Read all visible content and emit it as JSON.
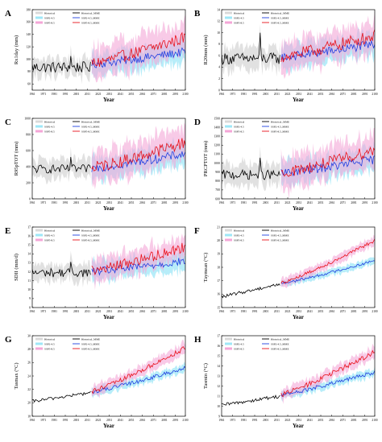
{
  "colors": {
    "historical_band": "#d9d9d9",
    "ssp245_band": "#9fe7f7",
    "ssp585_band": "#f4a6d7",
    "historical_line": "#000000",
    "ssp245_line": "#2040e0",
    "ssp585_line": "#e8101a"
  },
  "chart_data": [
    {
      "type": "line",
      "panel": "A",
      "ylabel": "Rx1day (mm)",
      "xlabel": "Year",
      "xlim": [
        1961,
        2100
      ],
      "ylim": [
        50,
        180
      ],
      "grid": false,
      "legend": "top-left",
      "xticks": [
        "1961",
        "1971",
        "1981",
        "1991",
        "2001",
        "2011",
        "2021",
        "2031",
        "2041",
        "2051",
        "2061",
        "2071",
        "2081",
        "2091",
        "2100"
      ],
      "yticks": [
        "60",
        "80",
        "100",
        "120",
        "140",
        "160",
        "180"
      ],
      "legend_labels": [
        "Historical",
        "Historical_MME",
        "SSP2-4.5",
        "SSP2-4.5_MME",
        "SSP5-8.5",
        "SSP5-8.5_MME"
      ],
      "hist": {
        "start": 1961,
        "end": 2014,
        "base": 87,
        "trend": 0.0,
        "noise": 9,
        "spikes": [
          [
            1996,
            105
          ],
          [
            1971,
            92
          ]
        ],
        "band": 14
      },
      "ssp245": {
        "start": 2015,
        "end": 2100,
        "base": 92,
        "end_value": 112,
        "noise": 7,
        "band": 18
      },
      "ssp585": {
        "start": 2015,
        "end": 2100,
        "base": 93,
        "end_value": 135,
        "noise": 10,
        "band": 24
      }
    },
    {
      "type": "line",
      "panel": "B",
      "ylabel": "R20mm (mm)",
      "xlabel": "Year",
      "xlim": [
        1961,
        2100
      ],
      "ylim": [
        0,
        14
      ],
      "grid": false,
      "legend": "top-left",
      "xticks": [
        "1961",
        "1971",
        "1981",
        "1991",
        "2001",
        "2011",
        "2021",
        "2031",
        "2041",
        "2051",
        "2061",
        "2071",
        "2081",
        "2091",
        "2100"
      ],
      "yticks": [
        "0",
        "2",
        "4",
        "6",
        "8",
        "10",
        "12",
        "14"
      ],
      "legend_labels": [
        "Historical",
        "Historical_MME",
        "SSP2-4.5",
        "SSP2-4.5_MME",
        "SSP5-8.5",
        "SSP5-8.5_MME"
      ],
      "hist": {
        "start": 1961,
        "end": 2014,
        "base": 5.5,
        "trend": 0.0,
        "noise": 1.0,
        "spikes": [
          [
            1996,
            10.0
          ]
        ],
        "band": 1.8
      },
      "ssp245": {
        "start": 2015,
        "end": 2100,
        "base": 5.7,
        "end_value": 8.0,
        "noise": 0.8,
        "band": 2.0
      },
      "ssp585": {
        "start": 2015,
        "end": 2100,
        "base": 5.8,
        "end_value": 9.5,
        "noise": 1.1,
        "band": 2.6
      }
    },
    {
      "type": "line",
      "panel": "C",
      "ylabel": "R95pTOT (mm)",
      "xlabel": "Year",
      "xlim": [
        1961,
        2100
      ],
      "ylim": [
        0,
        1000
      ],
      "grid": false,
      "legend": "top-left",
      "xticks": [
        "1961",
        "1971",
        "1981",
        "1991",
        "2001",
        "2011",
        "2021",
        "2031",
        "2041",
        "2051",
        "2061",
        "2071",
        "2081",
        "2091",
        "2100"
      ],
      "yticks": [
        "0",
        "200",
        "400",
        "600",
        "800",
        "1000"
      ],
      "legend_labels": [
        "Historical",
        "Historical_MME",
        "SSP2-4.5",
        "SSP2-4.5_MME",
        "SSP5-8.5",
        "SSP5-8.5_MME"
      ],
      "hist": {
        "start": 1961,
        "end": 2014,
        "base": 370,
        "trend": 0.0,
        "noise": 55,
        "spikes": [
          [
            1996,
            520
          ]
        ],
        "band": 110
      },
      "ssp245": {
        "start": 2015,
        "end": 2100,
        "base": 380,
        "end_value": 560,
        "noise": 55,
        "band": 140
      },
      "ssp585": {
        "start": 2015,
        "end": 2100,
        "base": 385,
        "end_value": 700,
        "noise": 75,
        "band": 190
      }
    },
    {
      "type": "line",
      "panel": "D",
      "ylabel": "PRCPTOT (mm)",
      "xlabel": "Year",
      "xlim": [
        1961,
        2100
      ],
      "ylim": [
        600,
        1500
      ],
      "grid": false,
      "legend": "top-left",
      "xticks": [
        "1961",
        "1971",
        "1981",
        "1991",
        "2001",
        "2011",
        "2021",
        "2031",
        "2041",
        "2051",
        "2061",
        "2071",
        "2081",
        "2091",
        "2100"
      ],
      "yticks": [
        "600",
        "700",
        "800",
        "900",
        "1000",
        "1100",
        "1200",
        "1300",
        "1400",
        "1500"
      ],
      "legend_labels": [
        "Historical",
        "Historical_MME",
        "SSP2-4.5",
        "SSP2-4.5_MME",
        "SSP5-8.5",
        "SSP5-8.5_MME"
      ],
      "hist": {
        "start": 1961,
        "end": 2014,
        "base": 870,
        "trend": 0.0,
        "noise": 55,
        "spikes": [
          [
            1996,
            1060
          ]
        ],
        "band": 110
      },
      "ssp245": {
        "start": 2015,
        "end": 2100,
        "base": 885,
        "end_value": 1040,
        "noise": 50,
        "band": 130
      },
      "ssp585": {
        "start": 2015,
        "end": 2100,
        "base": 890,
        "end_value": 1150,
        "noise": 65,
        "band": 180
      }
    },
    {
      "type": "line",
      "panel": "E",
      "ylabel": "SDII (mm/d)",
      "xlabel": "Year",
      "xlim": [
        1961,
        2100
      ],
      "ylim": [
        8,
        17
      ],
      "grid": false,
      "legend": "top-left",
      "xticks": [
        "1961",
        "1971",
        "1981",
        "1991",
        "2001",
        "2011",
        "2021",
        "2031",
        "2041",
        "2051",
        "2061",
        "2071",
        "2081",
        "2091",
        "2100"
      ],
      "yticks": [
        "8",
        "9",
        "10",
        "11",
        "12",
        "13",
        "14",
        "15",
        "16",
        "17"
      ],
      "legend_labels": [
        "Historical",
        "Historical_MME",
        "SSP2-4.5",
        "SSP2-4.5_MME",
        "SSP5-8.5",
        "SSP5-8.5_MME"
      ],
      "hist": {
        "start": 1961,
        "end": 2014,
        "base": 11.9,
        "trend": 0.0,
        "noise": 0.5,
        "spikes": [
          [
            1996,
            13.1
          ]
        ],
        "band": 0.9
      },
      "ssp245": {
        "start": 2015,
        "end": 2100,
        "base": 12.0,
        "end_value": 13.2,
        "noise": 0.45,
        "band": 1.0
      },
      "ssp585": {
        "start": 2015,
        "end": 2100,
        "base": 12.1,
        "end_value": 14.8,
        "noise": 0.6,
        "band": 1.3
      }
    },
    {
      "type": "line",
      "panel": "F",
      "ylabel": "Taymean (°C)",
      "xlabel": "Year",
      "xlim": [
        1961,
        2100
      ],
      "ylim": [
        15,
        21
      ],
      "grid": false,
      "legend": "top-left",
      "xticks": [
        "1961",
        "1971",
        "1981",
        "1991",
        "2001",
        "2011",
        "2021",
        "2031",
        "2041",
        "2051",
        "2061",
        "2071",
        "2081",
        "2091",
        "2100"
      ],
      "yticks": [
        "15",
        "16",
        "17",
        "18",
        "19",
        "20",
        "21"
      ],
      "legend_labels": [
        "Historical",
        "Historical_MME",
        "SSP2-4.5",
        "SSP2-4.5_MME",
        "SSP5-8.5",
        "SSP5-8.5_MME"
      ],
      "hist": {
        "start": 1961,
        "end": 2014,
        "base": 15.8,
        "trend": 0.018,
        "noise": 0.12,
        "spikes": [],
        "band": 0.0
      },
      "ssp245": {
        "start": 2015,
        "end": 2100,
        "base": 16.8,
        "end_value": 18.5,
        "noise": 0.1,
        "band": 0.25
      },
      "ssp585": {
        "start": 2015,
        "end": 2100,
        "base": 16.85,
        "end_value": 20.0,
        "noise": 0.12,
        "band": 0.35
      }
    },
    {
      "type": "line",
      "panel": "G",
      "ylabel": "Tasmax (°C)",
      "xlabel": "Year",
      "xlim": [
        1961,
        2100
      ],
      "ylim": [
        18,
        30
      ],
      "grid": false,
      "legend": "top-left",
      "xticks": [
        "1961",
        "1971",
        "1981",
        "1991",
        "2001",
        "2011",
        "2021",
        "2031",
        "2041",
        "2051",
        "2061",
        "2071",
        "2081",
        "2091",
        "2100"
      ],
      "yticks": [
        "18",
        "20",
        "22",
        "24",
        "26",
        "28",
        "30"
      ],
      "legend_labels": [
        "Historical",
        "Historical_MME",
        "SSP2-4.5",
        "SSP2-4.5_MME",
        "SSP5-8.5",
        "SSP5-8.5_MME"
      ],
      "hist": {
        "start": 1961,
        "end": 2014,
        "base": 20.2,
        "trend": 0.025,
        "noise": 0.25,
        "spikes": [],
        "band": 0.0
      },
      "ssp245": {
        "start": 2015,
        "end": 2100,
        "base": 21.6,
        "end_value": 25.2,
        "noise": 0.3,
        "band": 0.6
      },
      "ssp585": {
        "start": 2015,
        "end": 2100,
        "base": 21.7,
        "end_value": 28.2,
        "noise": 0.35,
        "band": 0.8
      }
    },
    {
      "type": "line",
      "panel": "H",
      "ylabel": "Tasmin (°C)",
      "xlabel": "Year",
      "xlim": [
        1961,
        2100
      ],
      "ylim": [
        9,
        17
      ],
      "grid": false,
      "legend": "top-left",
      "xticks": [
        "1961",
        "1971",
        "1981",
        "1991",
        "2001",
        "2011",
        "2021",
        "2031",
        "2041",
        "2051",
        "2061",
        "2071",
        "2081",
        "2091",
        "2100"
      ],
      "yticks": [
        "9",
        "10",
        "11",
        "12",
        "13",
        "14",
        "15",
        "16",
        "17"
      ],
      "legend_labels": [
        "Historical",
        "Historical_MME",
        "SSP2-4.5",
        "SSP2-4.5_MME",
        "SSP5-8.5",
        "SSP5-8.5_MME"
      ],
      "hist": {
        "start": 1961,
        "end": 2014,
        "base": 10.1,
        "trend": 0.017,
        "noise": 0.18,
        "spikes": [],
        "band": 0.0
      },
      "ssp245": {
        "start": 2015,
        "end": 2100,
        "base": 11.1,
        "end_value": 13.4,
        "noise": 0.2,
        "band": 0.4
      },
      "ssp585": {
        "start": 2015,
        "end": 2100,
        "base": 11.15,
        "end_value": 15.4,
        "noise": 0.25,
        "band": 0.55
      }
    }
  ]
}
